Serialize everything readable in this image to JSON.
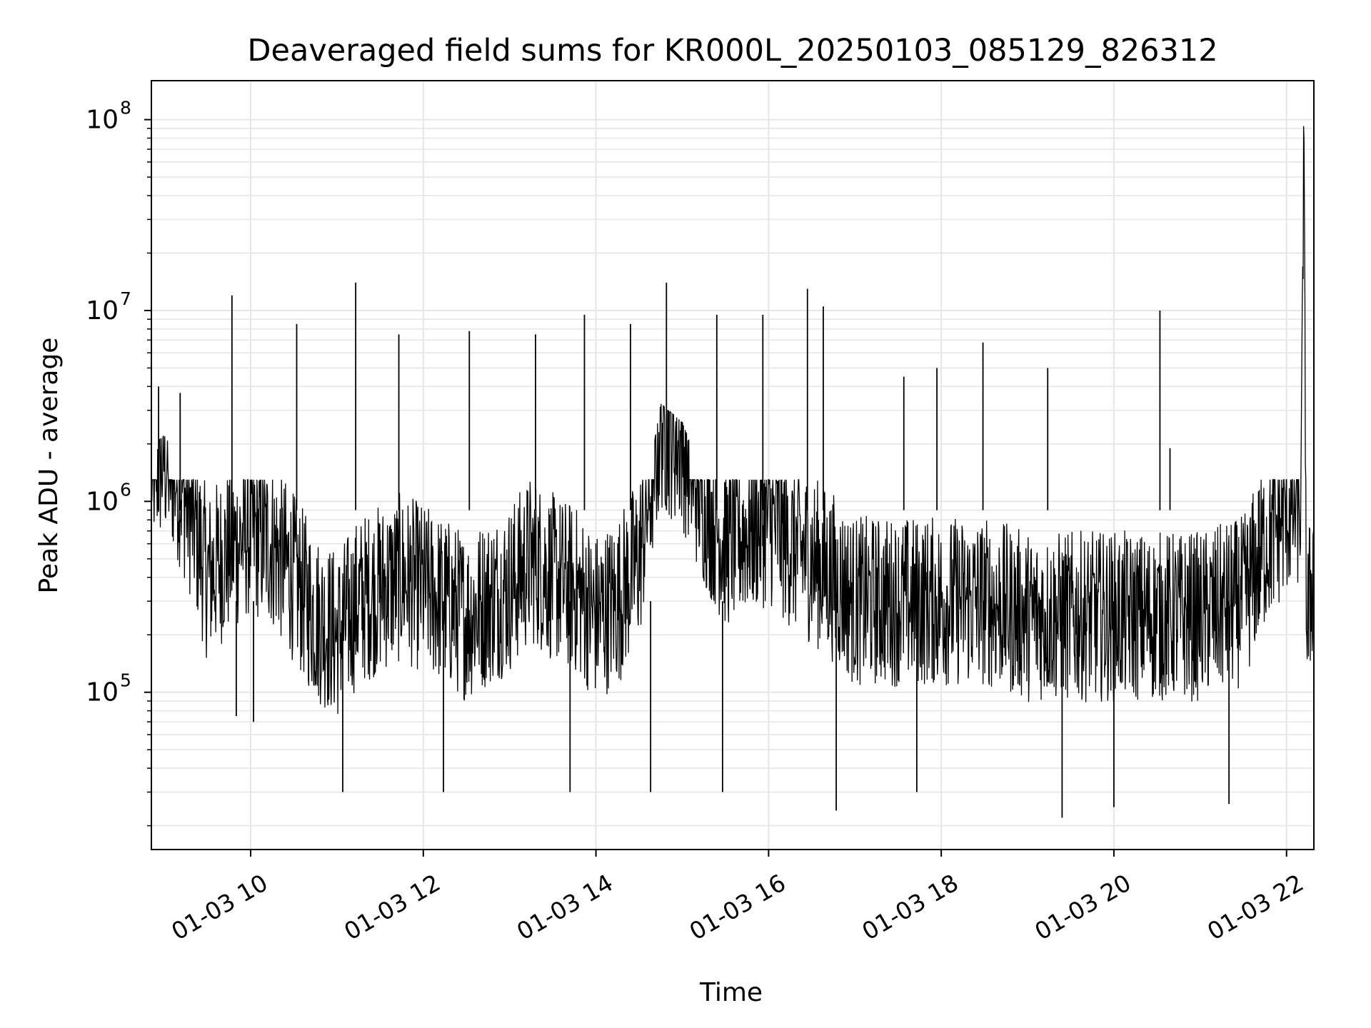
{
  "chart_data": {
    "type": "line",
    "title": "Deaveraged field sums for KR000L_20250103_085129_826312",
    "xlabel": "Time",
    "ylabel": "Peak ADU - average",
    "yscale": "log",
    "ylim": [
      15000,
      160000000
    ],
    "xlim": [
      "2025-01-03 08:51",
      "2025-01-03 22:19"
    ],
    "grid": true,
    "line_color": "#000000",
    "grid_color": "#e6e6e6",
    "x_ticks": [
      "2025-01-03 10:00",
      "2025-01-03 12:00",
      "2025-01-03 14:00",
      "2025-01-03 16:00",
      "2025-01-03 18:00",
      "2025-01-03 20:00",
      "2025-01-03 22:00"
    ],
    "x_tick_labels": [
      "01-03 10",
      "01-03 12",
      "01-03 14",
      "01-03 16",
      "01-03 18",
      "01-03 20",
      "01-03 22"
    ],
    "y_ticks": [
      100000,
      1000000,
      10000000,
      100000000
    ],
    "y_tick_labels": [
      {
        "base": "10",
        "exp": "5"
      },
      {
        "base": "10",
        "exp": "6"
      },
      {
        "base": "10",
        "exp": "7"
      },
      {
        "base": "10",
        "exp": "8"
      }
    ],
    "series": [
      {
        "points": [
          [
            "2025-01-03 08:51",
            1500000
          ],
          [
            "2025-01-03 09:00",
            1700000
          ],
          [
            "2025-01-03 09:10",
            1300000
          ],
          [
            "2025-01-03 09:20",
            800000
          ],
          [
            "2025-01-03 09:30",
            400000
          ],
          [
            "2025-01-03 09:40",
            500000
          ],
          [
            "2025-01-03 09:50",
            600000
          ],
          [
            "2025-01-03 10:00",
            700000
          ],
          [
            "2025-01-03 10:15",
            600000
          ],
          [
            "2025-01-03 10:30",
            400000
          ],
          [
            "2025-01-03 10:45",
            250000
          ],
          [
            "2025-01-03 11:00",
            200000
          ],
          [
            "2025-01-03 11:15",
            300000
          ],
          [
            "2025-01-03 11:30",
            350000
          ],
          [
            "2025-01-03 11:45",
            400000
          ],
          [
            "2025-01-03 12:00",
            350000
          ],
          [
            "2025-01-03 12:15",
            300000
          ],
          [
            "2025-01-03 12:30",
            250000
          ],
          [
            "2025-01-03 12:45",
            300000
          ],
          [
            "2025-01-03 13:00",
            350000
          ],
          [
            "2025-01-03 13:15",
            500000
          ],
          [
            "2025-01-03 13:30",
            400000
          ],
          [
            "2025-01-03 13:45",
            350000
          ],
          [
            "2025-01-03 14:00",
            250000
          ],
          [
            "2025-01-03 14:15",
            300000
          ],
          [
            "2025-01-03 14:30",
            500000
          ],
          [
            "2025-01-03 14:45",
            2500000
          ],
          [
            "2025-01-03 15:00",
            2000000
          ],
          [
            "2025-01-03 15:15",
            1000000
          ],
          [
            "2025-01-03 15:30",
            600000
          ],
          [
            "2025-01-03 15:45",
            700000
          ],
          [
            "2025-01-03 16:00",
            800000
          ],
          [
            "2025-01-03 16:15",
            600000
          ],
          [
            "2025-01-03 16:30",
            500000
          ],
          [
            "2025-01-03 16:45",
            400000
          ],
          [
            "2025-01-03 17:00",
            300000
          ],
          [
            "2025-01-03 17:30",
            300000
          ],
          [
            "2025-01-03 18:00",
            300000
          ],
          [
            "2025-01-03 18:30",
            300000
          ],
          [
            "2025-01-03 19:00",
            250000
          ],
          [
            "2025-01-03 19:30",
            250000
          ],
          [
            "2025-01-03 20:00",
            250000
          ],
          [
            "2025-01-03 20:30",
            250000
          ],
          [
            "2025-01-03 21:00",
            250000
          ],
          [
            "2025-01-03 21:30",
            300000
          ],
          [
            "2025-01-03 21:45",
            600000
          ],
          [
            "2025-01-03 22:00",
            900000
          ],
          [
            "2025-01-03 22:10",
            1000000
          ],
          [
            "2025-01-03 22:12",
            100000000
          ],
          [
            "2025-01-03 22:14",
            200000
          ],
          [
            "2025-01-03 22:19",
            500000
          ]
        ],
        "spikes": [
          [
            "2025-01-03 08:56",
            4000000
          ],
          [
            "2025-01-03 09:11",
            3700000
          ],
          [
            "2025-01-03 09:47",
            12000000
          ],
          [
            "2025-01-03 10:32",
            8500000
          ],
          [
            "2025-01-03 11:13",
            14000000
          ],
          [
            "2025-01-03 11:43",
            7500000
          ],
          [
            "2025-01-03 12:32",
            7800000
          ],
          [
            "2025-01-03 13:18",
            7500000
          ],
          [
            "2025-01-03 13:52",
            9500000
          ],
          [
            "2025-01-03 14:24",
            8500000
          ],
          [
            "2025-01-03 14:49",
            14000000
          ],
          [
            "2025-01-03 15:24",
            9500000
          ],
          [
            "2025-01-03 15:56",
            9500000
          ],
          [
            "2025-01-03 16:27",
            13000000
          ],
          [
            "2025-01-03 16:38",
            10500000
          ],
          [
            "2025-01-03 17:34",
            4500000
          ],
          [
            "2025-01-03 17:57",
            5000000
          ],
          [
            "2025-01-03 18:29",
            6800000
          ],
          [
            "2025-01-03 19:14",
            5000000
          ],
          [
            "2025-01-03 20:32",
            10000000
          ],
          [
            "2025-01-03 20:39",
            1900000
          ]
        ],
        "dips": [
          [
            "2025-01-03 09:50",
            75000
          ],
          [
            "2025-01-03 10:02",
            70000
          ],
          [
            "2025-01-03 11:04",
            30000
          ],
          [
            "2025-01-03 12:14",
            30000
          ],
          [
            "2025-01-03 13:42",
            30000
          ],
          [
            "2025-01-03 14:38",
            30000
          ],
          [
            "2025-01-03 15:28",
            30000
          ],
          [
            "2025-01-03 16:47",
            24000
          ],
          [
            "2025-01-03 17:43",
            30000
          ],
          [
            "2025-01-03 19:24",
            22000
          ],
          [
            "2025-01-03 20:00",
            25000
          ],
          [
            "2025-01-03 21:20",
            26000
          ]
        ]
      }
    ]
  }
}
